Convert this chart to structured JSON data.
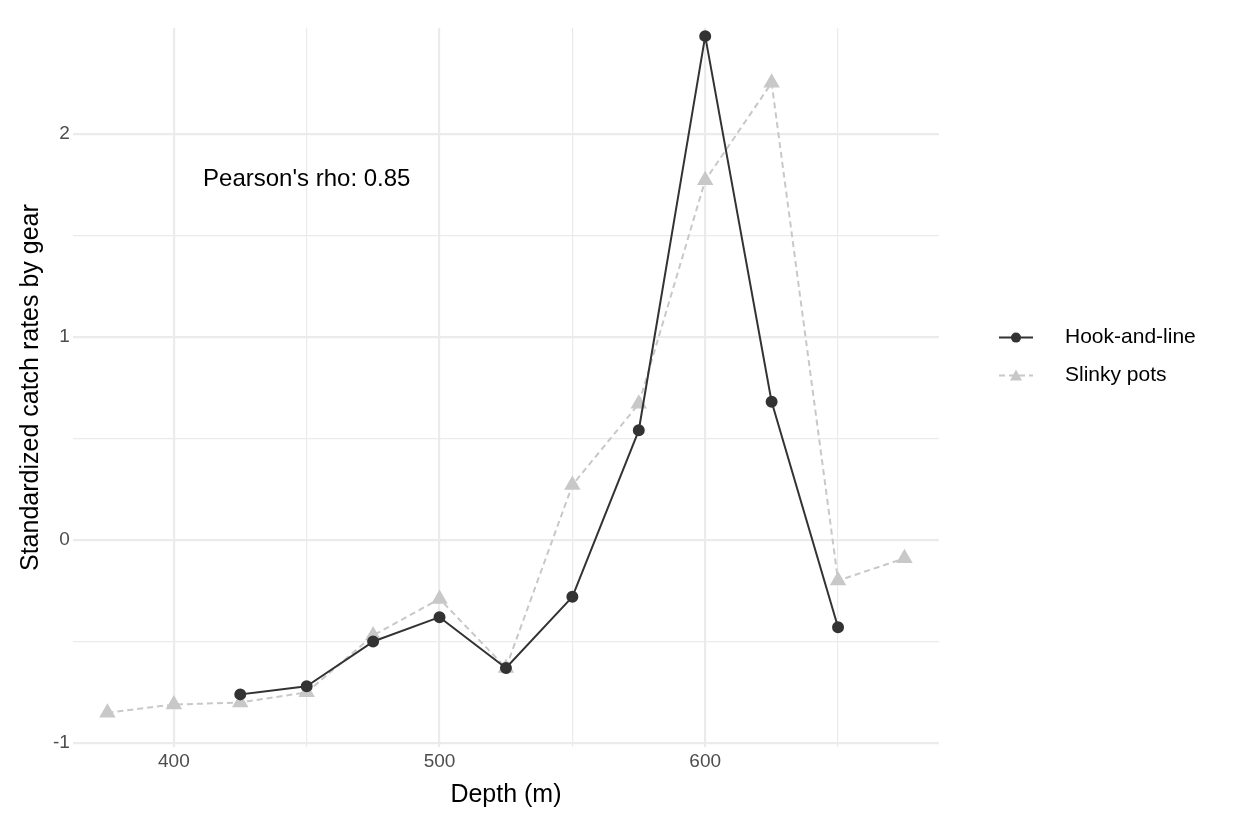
{
  "chart_data": {
    "type": "line",
    "xlabel": "Depth (m)",
    "ylabel": "Standardized catch rates by gear",
    "xlim": [
      362,
      688
    ],
    "ylim": [
      -1.02,
      2.52
    ],
    "xticks": [
      400,
      {
        "value": 450,
        "label": null
      },
      500,
      {
        "value": 550,
        "label": null
      },
      600,
      {
        "value": 650,
        "label": null
      }
    ],
    "yticks": [
      -1,
      {
        "value": -0.5,
        "label": null
      },
      0,
      {
        "value": 0.5,
        "label": null
      },
      1,
      {
        "value": 1.5,
        "label": null
      },
      2
    ],
    "grid": true,
    "legend": "right",
    "annotations": [
      "Pearson's rho: 0.85"
    ],
    "series": [
      {
        "name": "Hook-and-line",
        "color": "#333333",
        "marker": "circle",
        "line_style": "solid",
        "x": [
          425,
          450,
          475,
          500,
          525,
          550,
          575,
          600,
          625,
          650
        ],
        "values": [
          -0.76,
          -0.72,
          -0.5,
          -0.38,
          -0.63,
          -0.28,
          0.54,
          2.48,
          0.68,
          -0.43
        ]
      },
      {
        "name": "Slinky pots",
        "color": "#c8c8c8",
        "marker": "triangle",
        "line_style": "dashed",
        "x": [
          375,
          400,
          425,
          450,
          475,
          500,
          525,
          550,
          575,
          600,
          625,
          650,
          675
        ],
        "values": [
          -0.85,
          -0.81,
          -0.8,
          -0.75,
          -0.47,
          -0.29,
          -0.63,
          0.27,
          0.67,
          1.77,
          2.25,
          -0.2,
          -0.09
        ]
      }
    ]
  }
}
